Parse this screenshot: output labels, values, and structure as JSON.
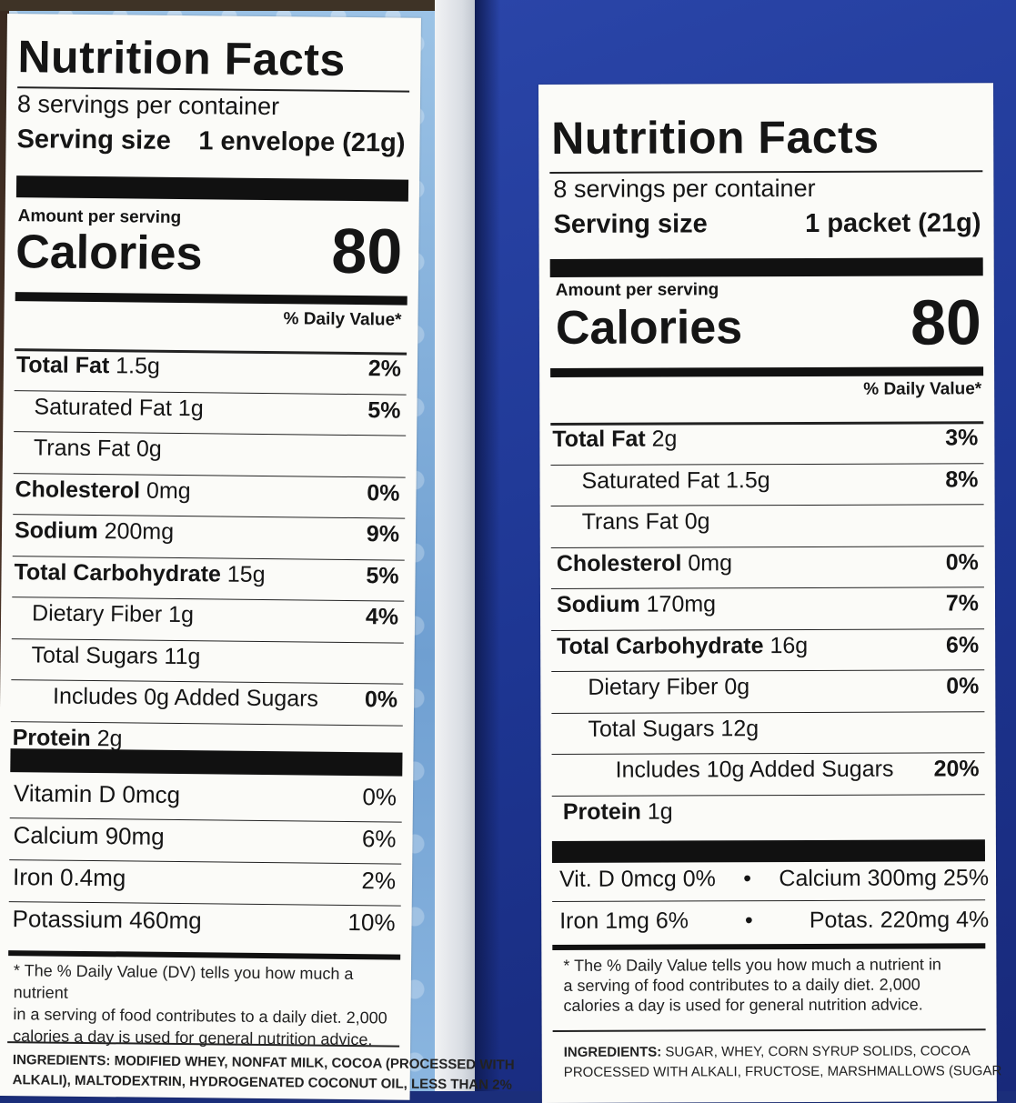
{
  "left_label": {
    "title": "Nutrition Facts",
    "servings_per_container": "8 servings per container",
    "serving_size_label": "Serving size",
    "serving_size_value": "1 envelope (21g)",
    "amount_per_serving": "Amount per serving",
    "calories_label": "Calories",
    "calories_value": "80",
    "daily_value_header": "% Daily Value*",
    "nutrients": [
      {
        "name": "Total Fat",
        "amount": "1.5g",
        "dv": "2%"
      },
      {
        "name": "Saturated Fat 1g",
        "dv": "5%"
      },
      {
        "name": "Trans Fat 0g",
        "dv": ""
      },
      {
        "name": "Cholesterol",
        "amount": "0mg",
        "dv": "0%"
      },
      {
        "name": "Sodium",
        "amount": "200mg",
        "dv": "9%"
      },
      {
        "name": "Total Carbohydrate",
        "amount": "15g",
        "dv": "5%"
      },
      {
        "name": "Dietary Fiber 1g",
        "dv": "4%"
      },
      {
        "name": "Total Sugars 11g",
        "dv": ""
      },
      {
        "name": "Includes 0g Added Sugars",
        "dv": "0%"
      },
      {
        "name": "Protein",
        "amount": "2g",
        "dv": ""
      }
    ],
    "vitamins": [
      {
        "name": "Vitamin D 0mcg",
        "dv": "0%"
      },
      {
        "name": "Calcium 90mg",
        "dv": "6%"
      },
      {
        "name": "Iron 0.4mg",
        "dv": "2%"
      },
      {
        "name": "Potassium 460mg",
        "dv": "10%"
      }
    ],
    "footnote": [
      "* The % Daily Value (DV) tells you how much a nutrient",
      "in a serving of food contributes to a daily diet. 2,000",
      "calories a day is used for general nutrition advice."
    ],
    "ingredients_label": "INGREDIENTS:",
    "ingredients_line1": "MODIFIED WHEY, NONFAT MILK, COCOA (PROCESSED WITH",
    "ingredients_line2": "ALKALI), MALTODEXTRIN, HYDROGENATED COCONUT OIL, LESS THAN 2%"
  },
  "right_label": {
    "title": "Nutrition Facts",
    "servings_per_container": "8 servings per container",
    "serving_size_label": "Serving size",
    "serving_size_value": "1 packet (21g)",
    "amount_per_serving": "Amount per serving",
    "calories_label": "Calories",
    "calories_value": "80",
    "daily_value_header": "% Daily Value*",
    "nutrients": [
      {
        "name": "Total Fat",
        "amount": "2g",
        "dv": "3%"
      },
      {
        "name": "Saturated Fat 1.5g",
        "dv": "8%"
      },
      {
        "name": "Trans Fat 0g",
        "dv": ""
      },
      {
        "name": "Cholesterol",
        "amount": "0mg",
        "dv": "0%"
      },
      {
        "name": "Sodium",
        "amount": "170mg",
        "dv": "7%"
      },
      {
        "name": "Total Carbohydrate",
        "amount": "16g",
        "dv": "6%"
      },
      {
        "name": "Dietary Fiber 0g",
        "dv": "0%"
      },
      {
        "name": "Total Sugars 12g",
        "dv": ""
      },
      {
        "name": "Includes 10g Added Sugars",
        "dv": "20%"
      },
      {
        "name": "Protein",
        "amount": "1g",
        "dv": ""
      }
    ],
    "vitamins_row1_left": "Vit. D 0mcg 0%",
    "vitamins_row1_right": "Calcium 300mg 25%",
    "vitamins_row2_left": "Iron 1mg 6%",
    "vitamins_row2_right": "Potas. 220mg 4%",
    "bullet": "•",
    "footnote": [
      "* The % Daily Value tells you how much a nutrient in",
      "a serving of food contributes to a daily diet. 2,000",
      "calories a day is used for general nutrition advice."
    ],
    "ingredients_label": "INGREDIENTS:",
    "ingredients_line1": "SUGAR, WHEY, CORN SYRUP SOLIDS, COCOA",
    "ingredients_line2": "PROCESSED WITH ALKALI, FRUCTOSE, MARSHMALLOWS (SUGAR"
  }
}
